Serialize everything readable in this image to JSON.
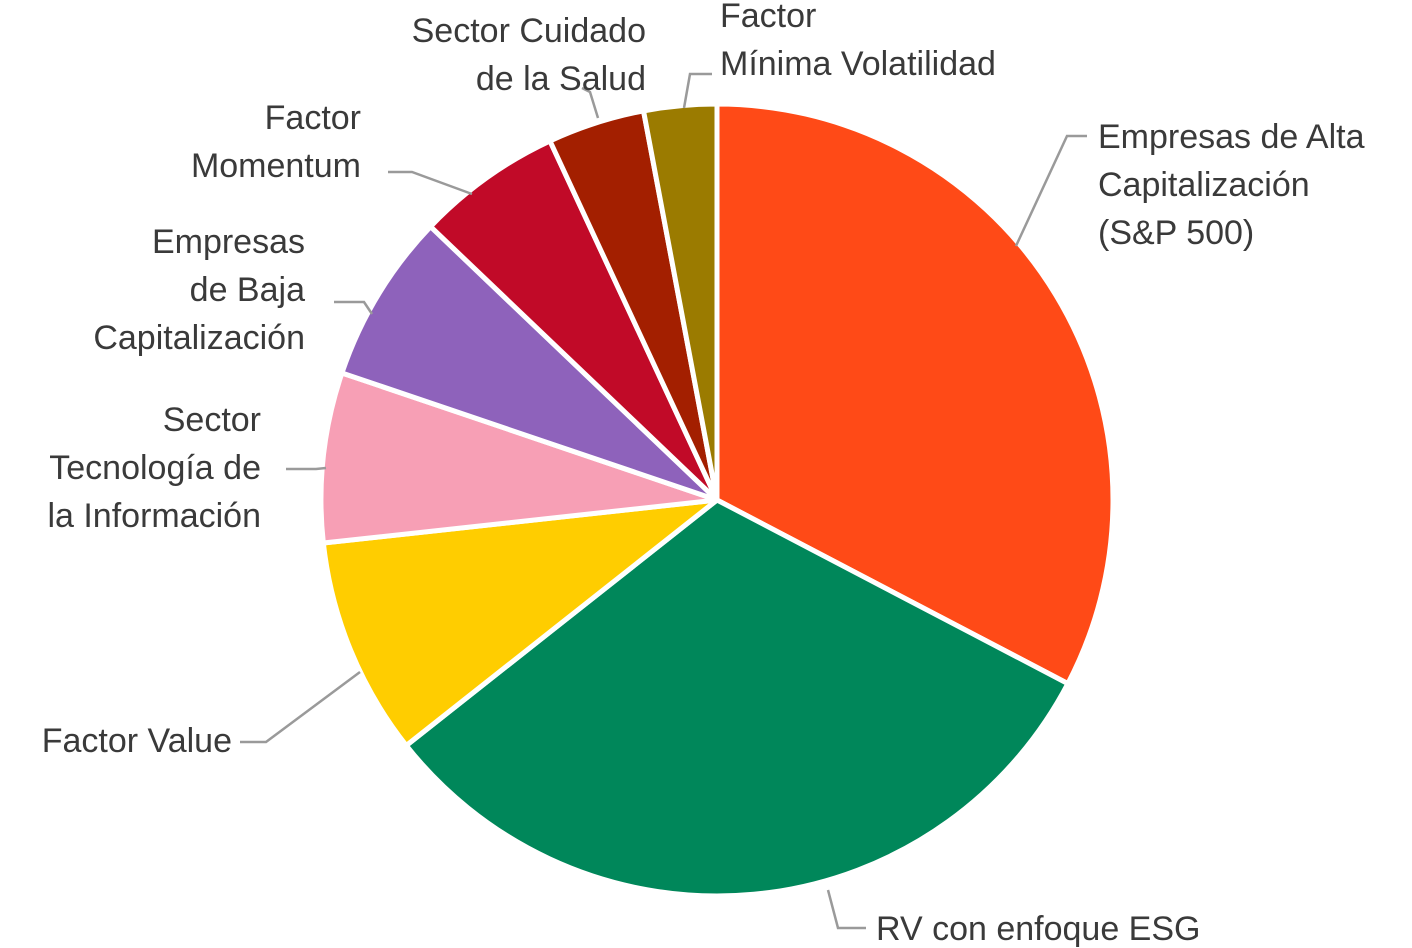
{
  "chart_data": {
    "type": "pie",
    "title": "",
    "unit": "%",
    "slices": [
      {
        "label_lines": [
          "Empresas de Alta",
          "Capitalización",
          "(S&P 500)"
        ],
        "value": 33,
        "color": "#ff4a17"
      },
      {
        "label_lines": [
          "RV con enfoque ESG"
        ],
        "value": 32,
        "color": "#00875a"
      },
      {
        "label_lines": [
          "Factor Value"
        ],
        "value": 9,
        "color": "#ffcd00"
      },
      {
        "label_lines": [
          "Sector",
          "Tecnología de",
          "la Información"
        ],
        "value": 7,
        "color": "#f79fb5"
      },
      {
        "label_lines": [
          "Empresas",
          "de Baja",
          "Capitalización"
        ],
        "value": 7,
        "color": "#8e62bb"
      },
      {
        "label_lines": [
          "Factor",
          "Momentum"
        ],
        "value": 6,
        "color": "#c10a28"
      },
      {
        "label_lines": [
          "Sector Cuidado",
          "de la Salud"
        ],
        "value": 4,
        "color": "#a31f00"
      },
      {
        "label_lines": [
          "Factor",
          "Mínima Volatilidad"
        ],
        "value": 3,
        "color": "#9b7b00"
      }
    ],
    "start_angle": "12 o'clock",
    "direction": "clockwise",
    "legend": "none",
    "labels": "outside with leader lines"
  }
}
